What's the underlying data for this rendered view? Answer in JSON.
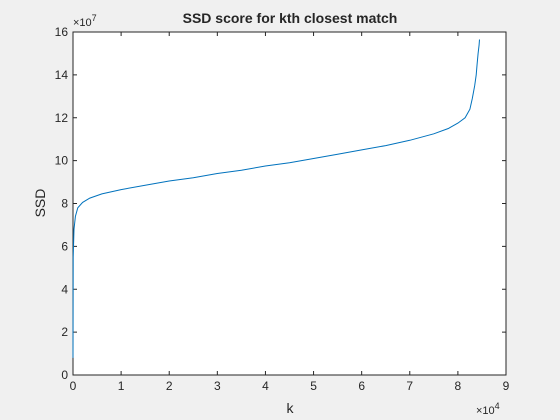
{
  "chart_data": {
    "type": "line",
    "title": "SSD score for kth closest match",
    "xlabel": "k",
    "ylabel": "SSD",
    "x_exponent_label": "×10",
    "x_exponent": "4",
    "y_exponent_label": "×10",
    "y_exponent": "7",
    "xlim": [
      0,
      9
    ],
    "ylim": [
      0,
      16
    ],
    "x_ticks": [
      "0",
      "1",
      "2",
      "3",
      "4",
      "5",
      "6",
      "7",
      "8",
      "9"
    ],
    "y_ticks": [
      "0",
      "2",
      "4",
      "6",
      "8",
      "10",
      "12",
      "14",
      "16"
    ],
    "grid": false,
    "series_color": "#0072bd",
    "series": [
      {
        "x": [
          0,
          0.005,
          0.02,
          0.05,
          0.1,
          0.2,
          0.35,
          0.6,
          1,
          1.5,
          2,
          2.5,
          3,
          3.5,
          4,
          4.5,
          5,
          5.5,
          6,
          6.5,
          7,
          7.5,
          7.8,
          8.0,
          8.15,
          8.25,
          8.3,
          8.35,
          8.38,
          8.4,
          8.42,
          8.44,
          8.45
        ],
        "y": [
          0.8,
          5.5,
          6.8,
          7.4,
          7.8,
          8.05,
          8.25,
          8.45,
          8.65,
          8.85,
          9.05,
          9.2,
          9.4,
          9.55,
          9.75,
          9.9,
          10.1,
          10.3,
          10.5,
          10.7,
          10.95,
          11.25,
          11.5,
          11.75,
          12.0,
          12.4,
          12.9,
          13.5,
          14.0,
          14.5,
          15.0,
          15.4,
          15.65
        ]
      }
    ]
  }
}
